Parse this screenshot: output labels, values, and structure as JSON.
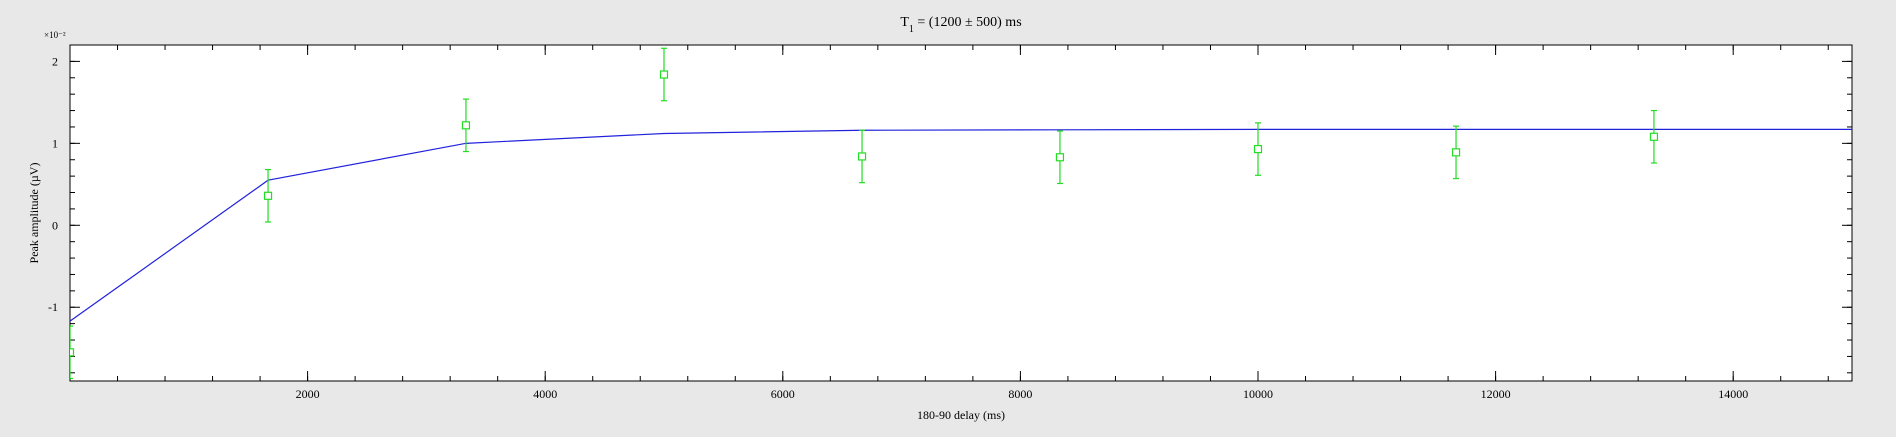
{
  "chart_data": {
    "type": "scatter",
    "title": {
      "prefix": "T",
      "subscript": "1",
      "suffix": " = (1200 ± 500) ms"
    },
    "xlabel": "180-90 delay (ms)",
    "ylabel": "Peak amplitude (µV)",
    "y_scale_label": "×10⁻²",
    "xlim": [
      0,
      15000
    ],
    "ylim": [
      -1.9,
      2.2
    ],
    "x_ticks_labeled": [
      2000,
      4000,
      6000,
      8000,
      10000,
      12000,
      14000
    ],
    "x_tick_labels": [
      "2000",
      "4000",
      "6000",
      "8000",
      "10000",
      "12000",
      "14000"
    ],
    "x_minor_step": 400,
    "y_ticks_labeled": [
      -1,
      0,
      1,
      2
    ],
    "y_tick_labels": [
      "-1",
      "0",
      "1",
      "2"
    ],
    "y_minor_step": 0.2,
    "grid": false,
    "series": [
      {
        "kind": "points_with_errorbars",
        "color": "#22dd22",
        "points": [
          {
            "x": 0,
            "y": -1.55,
            "err": 0.32
          },
          {
            "x": 1667,
            "y": 0.36,
            "err": 0.32
          },
          {
            "x": 3333,
            "y": 1.22,
            "err": 0.32
          },
          {
            "x": 5000,
            "y": 1.84,
            "err": 0.32
          },
          {
            "x": 6667,
            "y": 0.84,
            "err": 0.32
          },
          {
            "x": 8333,
            "y": 0.83,
            "err": 0.32
          },
          {
            "x": 10000,
            "y": 0.93,
            "err": 0.32
          },
          {
            "x": 11667,
            "y": 0.89,
            "err": 0.32
          },
          {
            "x": 13333,
            "y": 1.08,
            "err": 0.32
          }
        ]
      },
      {
        "kind": "fit_line",
        "color": "#2222dd",
        "x": [
          0,
          1667,
          3333,
          5000,
          6667,
          8333,
          10000,
          11667,
          13333,
          15000
        ],
        "y": [
          -1.17,
          0.55,
          1.0,
          1.12,
          1.16,
          1.165,
          1.17,
          1.17,
          1.17,
          1.17
        ]
      }
    ]
  }
}
